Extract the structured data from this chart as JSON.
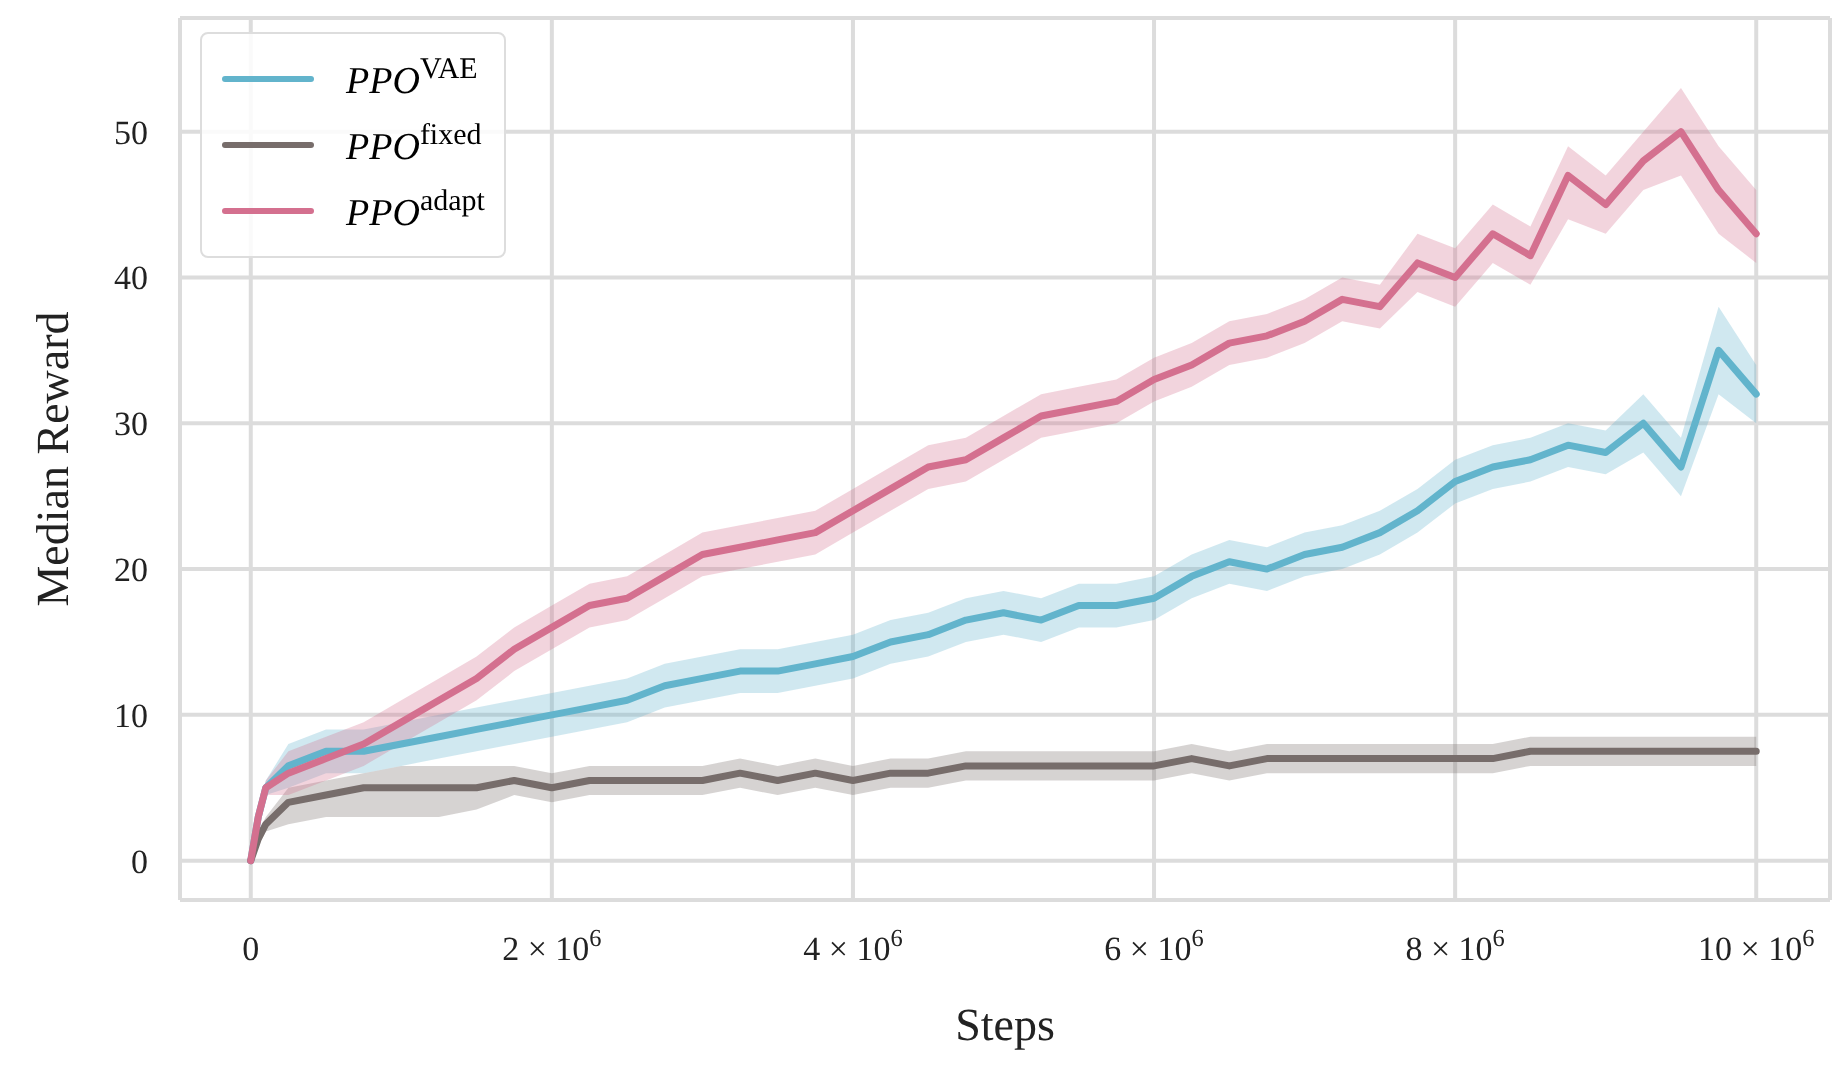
{
  "chart_data": {
    "type": "line",
    "xlabel": "Steps",
    "ylabel": "Median Reward",
    "x": [
      0,
      50000,
      100000,
      250000,
      500000,
      750000,
      1000000,
      1250000,
      1500000,
      1750000,
      2000000,
      2250000,
      2500000,
      2750000,
      3000000,
      3250000,
      3500000,
      3750000,
      4000000,
      4250000,
      4500000,
      4750000,
      5000000,
      5250000,
      5500000,
      5750000,
      6000000,
      6250000,
      6500000,
      6750000,
      7000000,
      7250000,
      7500000,
      7750000,
      8000000,
      8250000,
      8500000,
      8750000,
      9000000,
      9250000,
      9500000,
      9750000,
      10000000
    ],
    "series": [
      {
        "name": "PPO$^{VAE}$",
        "color": "#62b4cc",
        "values": [
          0,
          3,
          5,
          6.5,
          7.5,
          7.5,
          8,
          8.5,
          9,
          9.5,
          10,
          10.5,
          11,
          12,
          12.5,
          13,
          13,
          13.5,
          14,
          15,
          15.5,
          16.5,
          17,
          16.5,
          17.5,
          17.5,
          18,
          19.5,
          20.5,
          20,
          21,
          21.5,
          22.5,
          24,
          26,
          27,
          27.5,
          28.5,
          28,
          30,
          27,
          35,
          32
        ],
        "lower": [
          0,
          2.5,
          4.5,
          5,
          6,
          6,
          6.5,
          7,
          7.5,
          8,
          8.5,
          9,
          9.5,
          10.5,
          11,
          11.5,
          11.5,
          12,
          12.5,
          13.5,
          14,
          15,
          15.5,
          15,
          16,
          16,
          16.5,
          18,
          19,
          18.5,
          19.5,
          20,
          21,
          22.5,
          24.5,
          25.5,
          26,
          27,
          26.5,
          28,
          25,
          32,
          30
        ],
        "upper": [
          0,
          3.5,
          5.5,
          8,
          9,
          9,
          9.5,
          10,
          10.5,
          11,
          11.5,
          12,
          12.5,
          13.5,
          14,
          14.5,
          14.5,
          15,
          15.5,
          16.5,
          17,
          18,
          18.5,
          18,
          19,
          19,
          19.5,
          21,
          22,
          21.5,
          22.5,
          23,
          24,
          25.5,
          27.5,
          28.5,
          29,
          30,
          29.5,
          32,
          29,
          38,
          34
        ]
      },
      {
        "name": "PPO$^{fixed}$",
        "color": "#776d6b",
        "values": [
          0,
          1.5,
          2.5,
          4,
          4.5,
          5,
          5,
          5,
          5,
          5.5,
          5,
          5.5,
          5.5,
          5.5,
          5.5,
          6,
          5.5,
          6,
          5.5,
          6,
          6,
          6.5,
          6.5,
          6.5,
          6.5,
          6.5,
          6.5,
          7,
          6.5,
          7,
          7,
          7,
          7,
          7,
          7,
          7,
          7.5,
          7.5,
          7.5,
          7.5,
          7.5,
          7.5,
          7.5
        ],
        "lower": [
          0,
          1,
          2,
          2.5,
          3,
          3,
          3,
          3,
          3.5,
          4.5,
          4,
          4.5,
          4.5,
          4.5,
          4.5,
          5,
          4.5,
          5,
          4.5,
          5,
          5,
          5.5,
          5.5,
          5.5,
          5.5,
          5.5,
          5.5,
          6,
          5.5,
          6,
          6,
          6,
          6,
          6,
          6,
          6,
          6.5,
          6.5,
          6.5,
          6.5,
          6.5,
          6.5,
          6.5
        ],
        "upper": [
          0,
          2,
          3,
          5,
          5.5,
          6,
          6.5,
          6.5,
          6.5,
          6.5,
          6,
          6.5,
          6.5,
          6.5,
          6.5,
          7,
          6.5,
          7,
          6.5,
          7,
          7,
          7.5,
          7.5,
          7.5,
          7.5,
          7.5,
          7.5,
          8,
          7.5,
          8,
          8,
          8,
          8,
          8,
          8,
          8,
          8.5,
          8.5,
          8.5,
          8.5,
          8.5,
          8.5,
          8.5
        ]
      },
      {
        "name": "PPO$^{adapt}$",
        "color": "#d4708f",
        "values": [
          0,
          3,
          5,
          6,
          7,
          8,
          9.5,
          11,
          12.5,
          14.5,
          16,
          17.5,
          18,
          19.5,
          21,
          21.5,
          22,
          22.5,
          24,
          25.5,
          27,
          27.5,
          29,
          30.5,
          31,
          31.5,
          33,
          34,
          35.5,
          36,
          37,
          38.5,
          38,
          41,
          40,
          43,
          41.5,
          47,
          45,
          48,
          50,
          46,
          43
        ],
        "lower": [
          0,
          2.5,
          4.5,
          4.5,
          5.5,
          6.5,
          8,
          9.5,
          11,
          13,
          14.5,
          16,
          16.5,
          18,
          19.5,
          20,
          20.5,
          21,
          22.5,
          24,
          25.5,
          26,
          27.5,
          29,
          29.5,
          30,
          31.5,
          32.5,
          34,
          34.5,
          35.5,
          37,
          36.5,
          39,
          38,
          41,
          39.5,
          44,
          43,
          46,
          47,
          43,
          41
        ],
        "upper": [
          0,
          3.5,
          5.5,
          7.5,
          8.5,
          9.5,
          11,
          12.5,
          14,
          16,
          17.5,
          19,
          19.5,
          21,
          22.5,
          23,
          23.5,
          24,
          25.5,
          27,
          28.5,
          29,
          30.5,
          32,
          32.5,
          33,
          34.5,
          35.5,
          37,
          37.5,
          38.5,
          40,
          39.5,
          43,
          42,
          45,
          43.5,
          49,
          47,
          50,
          53,
          49,
          46
        ]
      }
    ],
    "xlim": [
      -470000,
      10490000
    ],
    "xticks": [
      0,
      {
        "value": 2000000,
        "label": "2 × 10$^{6}$"
      },
      {
        "value": 4000000,
        "label": "4 × 10$^{6}$"
      },
      {
        "value": 6000000,
        "label": "6 × 10$^{6}$"
      },
      {
        "value": 8000000,
        "label": "8 × 10$^{6}$"
      },
      {
        "value": 10000000,
        "label": "10 × 10$^{6}$"
      }
    ],
    "ylim": [
      -2.7,
      57.8
    ],
    "yticks": [
      0,
      10,
      20,
      30,
      40,
      50
    ],
    "grid": true,
    "legend": "top left",
    "marker": "none",
    "line_style": "solid"
  }
}
